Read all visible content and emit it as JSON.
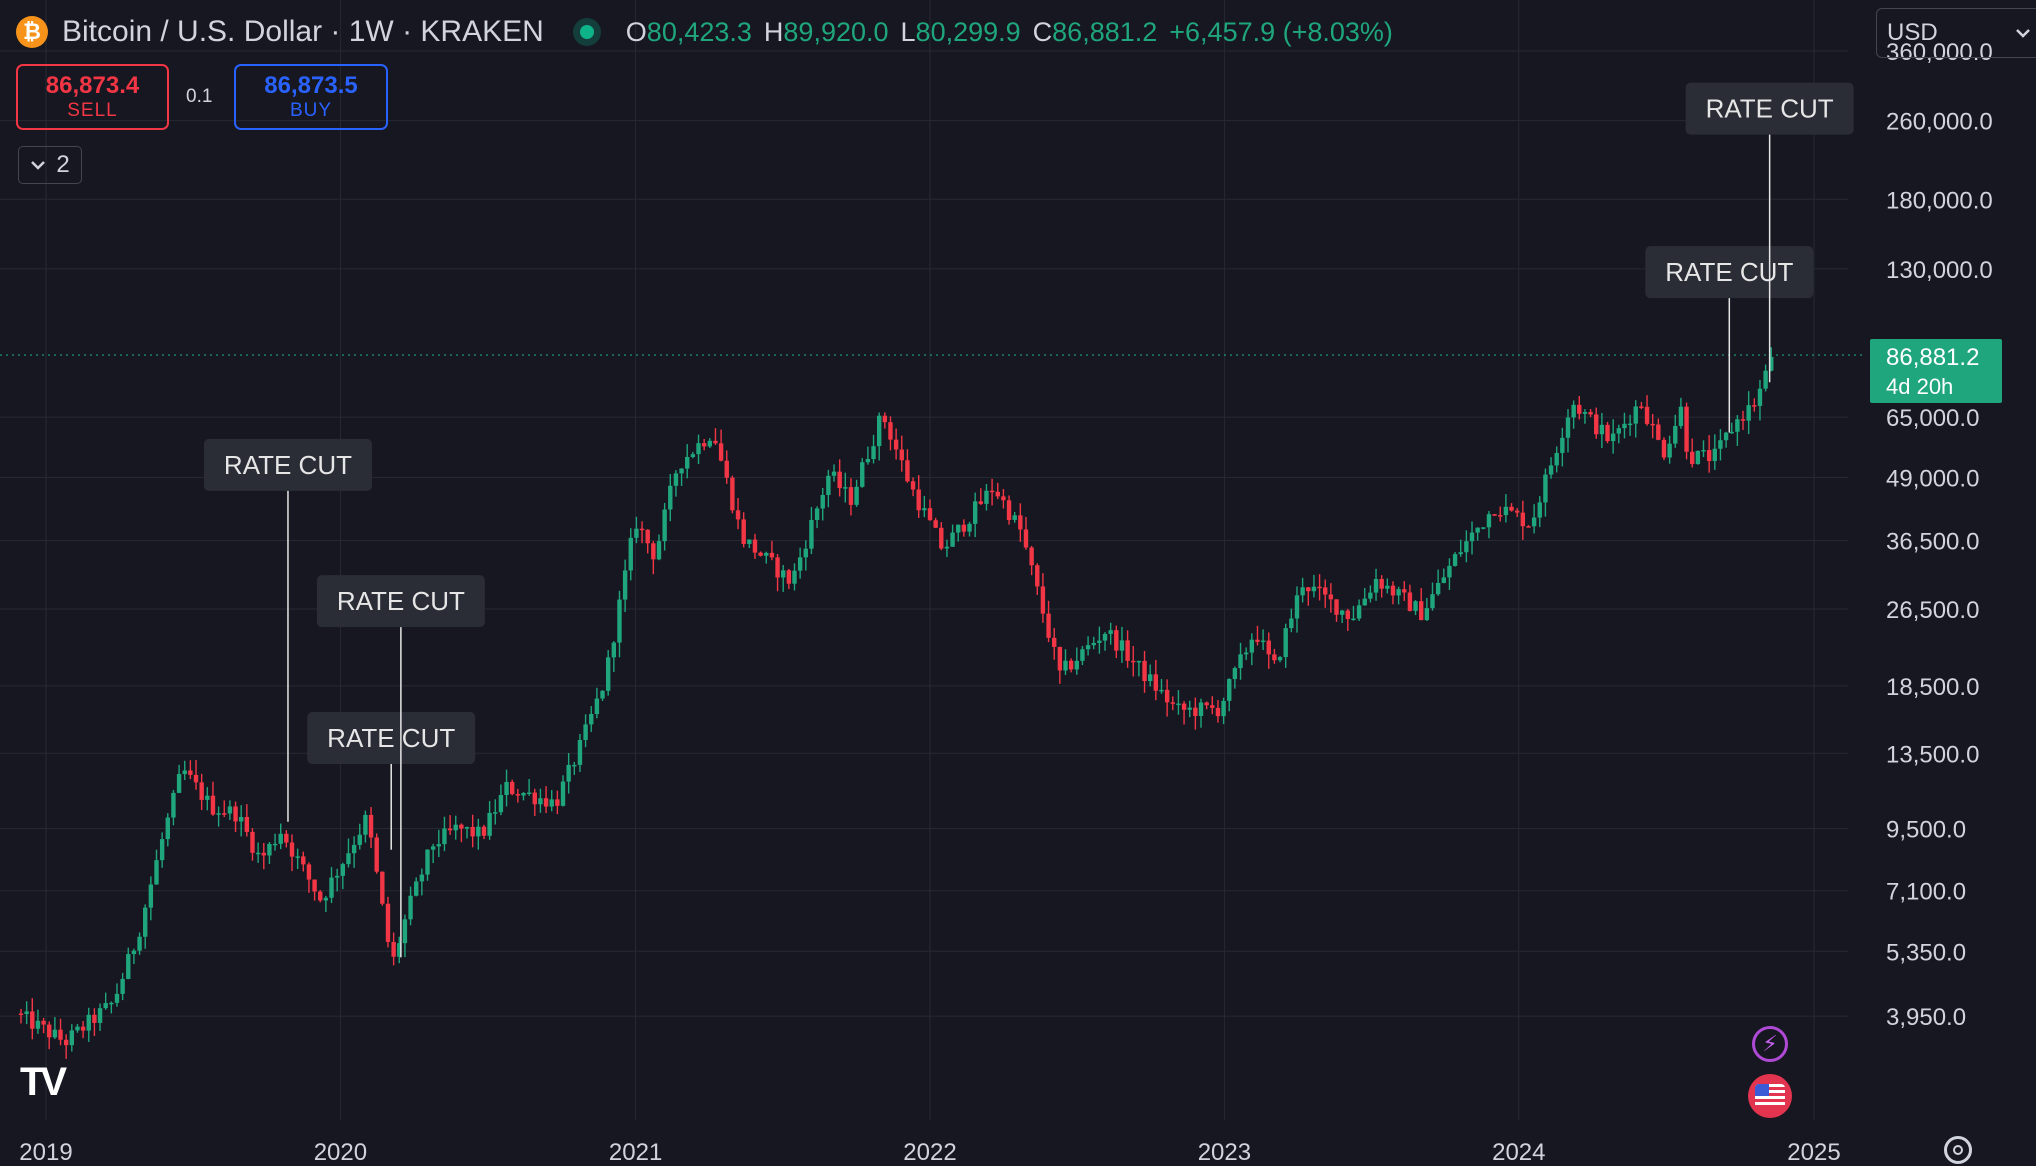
{
  "header": {
    "coin_symbol": "₿",
    "title": "Bitcoin / U.S. Dollar · 1W · KRAKEN",
    "ohlc": {
      "o_label": "O",
      "o": "80,423.3",
      "h_label": "H",
      "h": "89,920.0",
      "l_label": "L",
      "l": "80,299.9",
      "c_label": "C",
      "c": "86,881.2",
      "change": "+6,457.9 (+8.03%)"
    }
  },
  "trade": {
    "sell_price": "86,873.4",
    "sell_label": "SELL",
    "spread": "0.1",
    "buy_price": "86,873.5",
    "buy_label": "BUY"
  },
  "indicators_toggle": {
    "count": "2",
    "icon": "chevron-down-icon"
  },
  "currency_select": {
    "value": "USD",
    "icon": "chevron-down-icon"
  },
  "colors": {
    "background": "#161720",
    "grid": "#262833",
    "text": "#d1d4dc",
    "up": "#1fa67d",
    "down": "#f23645",
    "annotation_bg": "#2a2c36"
  },
  "chart_data": {
    "type": "candlestick",
    "title": "Bitcoin / U.S. Dollar · 1W · KRAKEN",
    "scale": "log",
    "ylim": [
      3300,
      470000
    ],
    "x_ticks": [
      "2019",
      "2020",
      "2021",
      "2022",
      "2023",
      "2024",
      "2025"
    ],
    "y_ticks": [
      3950,
      5350,
      7100,
      9500,
      13500,
      18500,
      26500,
      36500,
      49000,
      65000,
      130000,
      180000,
      260000,
      360000
    ],
    "y_tick_labels": [
      "3,950.0",
      "5,350.0",
      "7,100.0",
      "9,500.0",
      "13,500.0",
      "18,500.0",
      "26,500.0",
      "36,500.0",
      "49,000.0",
      "65,000.0",
      "130,000.0",
      "180,000.0",
      "260,000.0",
      "360,000.0"
    ],
    "last_price": {
      "value": 86881.2,
      "label": "86,881.2",
      "countdown": "4d 20h"
    },
    "anchors": [
      {
        "d": "2018-12-01",
        "p": 4000
      },
      {
        "d": "2019-02-01",
        "p": 3500
      },
      {
        "d": "2019-04-01",
        "p": 4200
      },
      {
        "d": "2019-05-01",
        "p": 5700
      },
      {
        "d": "2019-06-01",
        "p": 9000
      },
      {
        "d": "2019-06-26",
        "p": 12500
      },
      {
        "d": "2019-08-01",
        "p": 10500
      },
      {
        "d": "2019-09-01",
        "p": 10200
      },
      {
        "d": "2019-10-01",
        "p": 8200
      },
      {
        "d": "2019-10-26",
        "p": 9400
      },
      {
        "d": "2019-12-15",
        "p": 6800
      },
      {
        "d": "2020-02-10",
        "p": 10000
      },
      {
        "d": "2020-03-12",
        "p": 5000
      },
      {
        "d": "2020-04-01",
        "p": 6500
      },
      {
        "d": "2020-05-01",
        "p": 8800
      },
      {
        "d": "2020-06-01",
        "p": 9500
      },
      {
        "d": "2020-07-01",
        "p": 9200
      },
      {
        "d": "2020-08-01",
        "p": 11500
      },
      {
        "d": "2020-10-01",
        "p": 10700
      },
      {
        "d": "2020-11-01",
        "p": 14000
      },
      {
        "d": "2020-12-01",
        "p": 19000
      },
      {
        "d": "2021-01-08",
        "p": 40000
      },
      {
        "d": "2021-02-01",
        "p": 34000
      },
      {
        "d": "2021-03-01",
        "p": 52000
      },
      {
        "d": "2021-04-14",
        "p": 61000
      },
      {
        "d": "2021-05-20",
        "p": 37000
      },
      {
        "d": "2021-07-20",
        "p": 30000
      },
      {
        "d": "2021-09-05",
        "p": 50000
      },
      {
        "d": "2021-10-01",
        "p": 44000
      },
      {
        "d": "2021-11-10",
        "p": 66000
      },
      {
        "d": "2021-12-15",
        "p": 47000
      },
      {
        "d": "2022-01-24",
        "p": 35000
      },
      {
        "d": "2022-03-28",
        "p": 47000
      },
      {
        "d": "2022-05-01",
        "p": 38000
      },
      {
        "d": "2022-06-18",
        "p": 19500
      },
      {
        "d": "2022-08-14",
        "p": 24000
      },
      {
        "d": "2022-10-01",
        "p": 19500
      },
      {
        "d": "2022-11-10",
        "p": 16500
      },
      {
        "d": "2023-01-01",
        "p": 16600
      },
      {
        "d": "2023-02-15",
        "p": 24000
      },
      {
        "d": "2023-03-10",
        "p": 20000
      },
      {
        "d": "2023-04-15",
        "p": 30000
      },
      {
        "d": "2023-06-15",
        "p": 25500
      },
      {
        "d": "2023-07-15",
        "p": 30500
      },
      {
        "d": "2023-09-10",
        "p": 26000
      },
      {
        "d": "2023-10-25",
        "p": 34500
      },
      {
        "d": "2023-12-10",
        "p": 43000
      },
      {
        "d": "2024-01-23",
        "p": 39500
      },
      {
        "d": "2024-03-14",
        "p": 70000
      },
      {
        "d": "2024-05-01",
        "p": 58000
      },
      {
        "d": "2024-06-07",
        "p": 70000
      },
      {
        "d": "2024-07-05",
        "p": 55000
      },
      {
        "d": "2024-07-28",
        "p": 68000
      },
      {
        "d": "2024-08-05",
        "p": 54000
      },
      {
        "d": "2024-09-07",
        "p": 54000
      },
      {
        "d": "2024-10-01",
        "p": 63000
      },
      {
        "d": "2024-10-28",
        "p": 70000
      },
      {
        "d": "2024-11-11",
        "p": 80400
      },
      {
        "d": "2024-11-14",
        "p": 86881
      }
    ],
    "annotations": [
      {
        "label": "RATE CUT",
        "date": "2019-10-28",
        "tip_price": 9800,
        "box_price": 52000
      },
      {
        "label": "RATE CUT",
        "date": "2020-03-04",
        "tip_price": 8600,
        "box_price": 14500
      },
      {
        "label": "RATE CUT",
        "date": "2020-03-16",
        "tip_price": 5200,
        "box_price": 27500
      },
      {
        "label": "RATE CUT",
        "date": "2024-09-18",
        "tip_price": 60500,
        "box_price": 128000
      },
      {
        "label": "RATE CUT",
        "date": "2024-11-07",
        "tip_price": 76500,
        "box_price": 275000
      }
    ]
  }
}
